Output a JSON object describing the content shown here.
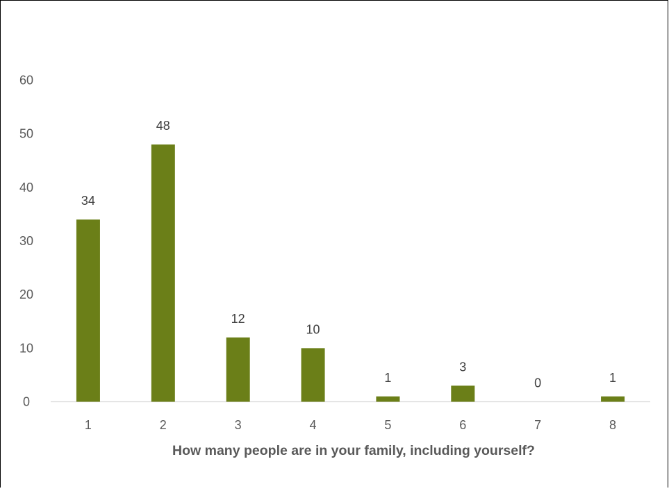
{
  "chart_data": {
    "type": "bar",
    "categories": [
      "1",
      "2",
      "3",
      "4",
      "5",
      "6",
      "7",
      "8"
    ],
    "values": [
      34,
      48,
      12,
      10,
      1,
      3,
      0,
      1
    ],
    "title": "",
    "xlabel": "How many people are in your family, including yourself?",
    "ylabel": "",
    "ylim": [
      0,
      60
    ],
    "yticks": [
      0,
      10,
      20,
      30,
      40,
      50,
      60
    ],
    "grid": false,
    "legend": "none",
    "bar_color": "#6b7f18",
    "axis_color": "#d9d9d9",
    "text_color": "#595959",
    "label_color": "#404040"
  }
}
